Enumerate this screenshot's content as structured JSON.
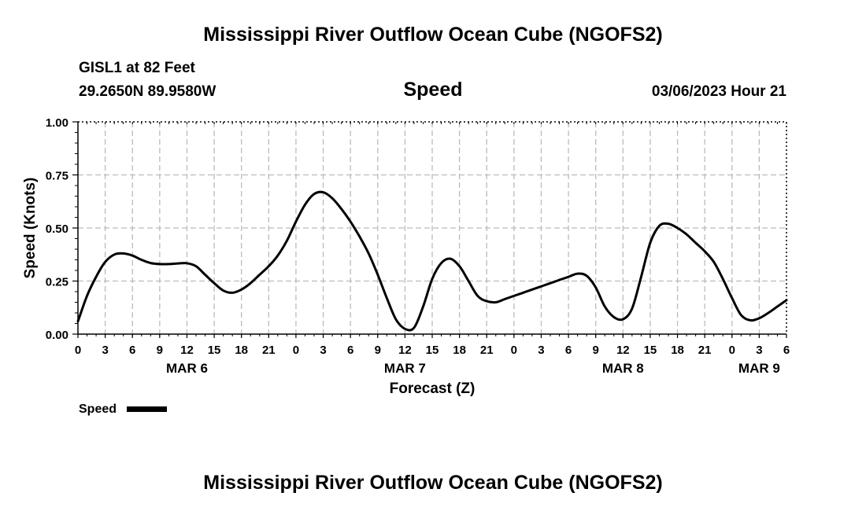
{
  "page": {
    "title": "Mississippi River Outflow Ocean Cube (NGOFS2)",
    "footer_title": "Mississippi River Outflow Ocean Cube (NGOFS2)",
    "station_line": "GISL1 at 82 Feet",
    "coords_line": "29.2650N  89.9580W",
    "date_line": "03/06/2023 Hour 21"
  },
  "chart_data": {
    "type": "line",
    "title": "Speed",
    "xlabel": "Forecast (Z)",
    "ylabel": "Speed (Knots)",
    "xlim": [
      0,
      78
    ],
    "ylim": [
      0,
      1
    ],
    "ytick_values": [
      0,
      0.25,
      0.5,
      0.75,
      1
    ],
    "ytick_labels": [
      "0.00",
      "0.25",
      "0.50",
      "0.75",
      "1.00"
    ],
    "xtick_values": [
      0,
      3,
      6,
      9,
      12,
      15,
      18,
      21,
      24,
      27,
      30,
      33,
      36,
      39,
      42,
      45,
      48,
      51,
      54,
      57,
      60,
      63,
      66,
      69,
      72,
      75,
      78
    ],
    "xtick_labels": [
      "0",
      "3",
      "6",
      "9",
      "12",
      "15",
      "18",
      "21",
      "0",
      "3",
      "6",
      "9",
      "12",
      "15",
      "18",
      "21",
      "0",
      "3",
      "6",
      "9",
      "12",
      "15",
      "18",
      "21",
      "0",
      "3",
      "6"
    ],
    "day_labels": [
      {
        "x": 12,
        "label": "MAR 6"
      },
      {
        "x": 36,
        "label": "MAR 7"
      },
      {
        "x": 60,
        "label": "MAR 8"
      },
      {
        "x": 75,
        "label": "MAR 9"
      }
    ],
    "grid": true,
    "legend": {
      "position": "bottom-left",
      "label": "Speed",
      "color": "#000000"
    },
    "series": [
      {
        "name": "Speed",
        "color": "#000000",
        "x": [
          0,
          1,
          2,
          3,
          4,
          5,
          6,
          7,
          8,
          9,
          10,
          11,
          12,
          13,
          14,
          15,
          16,
          17,
          18,
          19,
          20,
          21,
          22,
          23,
          24,
          25,
          26,
          27,
          28,
          29,
          30,
          31,
          32,
          33,
          34,
          35,
          36,
          37,
          38,
          39,
          40,
          41,
          42,
          43,
          44,
          45,
          46,
          47,
          48,
          49,
          50,
          51,
          52,
          53,
          54,
          55,
          56,
          57,
          58,
          59,
          60,
          61,
          62,
          63,
          64,
          65,
          66,
          67,
          68,
          69,
          70,
          71,
          72,
          73,
          74,
          75,
          76,
          77,
          78
        ],
        "values": [
          0.06,
          0.18,
          0.27,
          0.34,
          0.375,
          0.38,
          0.37,
          0.35,
          0.335,
          0.33,
          0.33,
          0.333,
          0.334,
          0.32,
          0.28,
          0.24,
          0.205,
          0.195,
          0.21,
          0.24,
          0.28,
          0.32,
          0.37,
          0.44,
          0.53,
          0.61,
          0.66,
          0.668,
          0.64,
          0.59,
          0.53,
          0.46,
          0.38,
          0.28,
          0.17,
          0.07,
          0.025,
          0.03,
          0.13,
          0.26,
          0.335,
          0.355,
          0.32,
          0.25,
          0.18,
          0.155,
          0.15,
          0.165,
          0.18,
          0.195,
          0.21,
          0.225,
          0.24,
          0.255,
          0.27,
          0.285,
          0.275,
          0.22,
          0.13,
          0.08,
          0.07,
          0.12,
          0.27,
          0.43,
          0.51,
          0.52,
          0.5,
          0.47,
          0.43,
          0.39,
          0.34,
          0.26,
          0.17,
          0.09,
          0.065,
          0.075,
          0.1,
          0.13,
          0.16
        ]
      }
    ]
  }
}
